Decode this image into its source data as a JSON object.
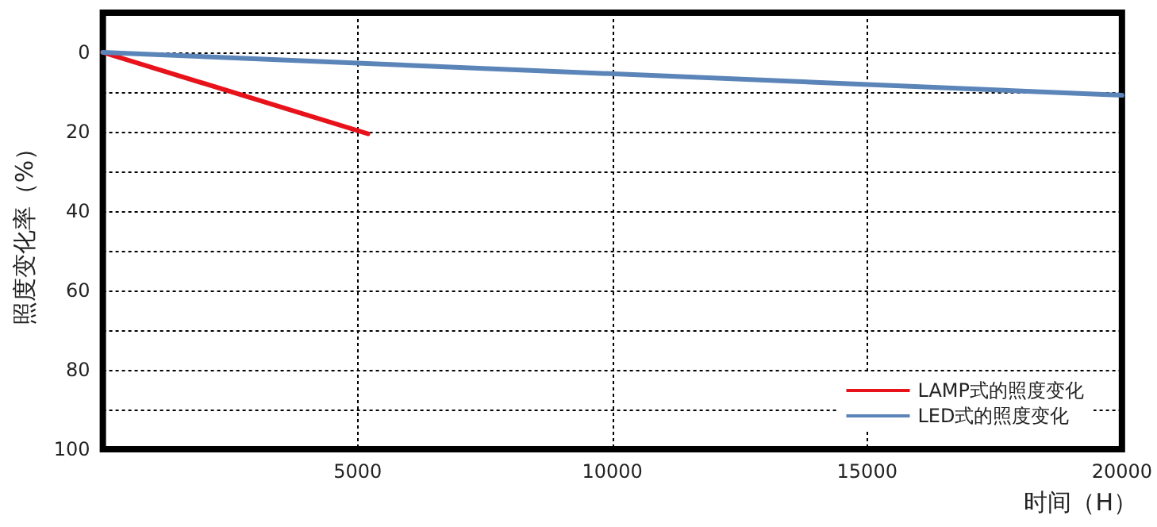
{
  "chart_data": {
    "type": "line",
    "xlabel": "时间（H）",
    "ylabel": "照度变化率（%）",
    "xlim": [
      0,
      20000
    ],
    "xticks": [
      5000,
      10000,
      15000,
      20000
    ],
    "ylim": [
      100,
      -10
    ],
    "yticks": [
      0,
      {
        "value": 10,
        "label": null
      },
      20,
      {
        "value": 30,
        "label": null
      },
      40,
      {
        "value": 50,
        "label": null
      },
      60,
      {
        "value": 70,
        "label": null
      },
      80,
      {
        "value": 90,
        "label": null
      },
      100
    ],
    "grid": true,
    "legend": "bottom right",
    "line_style": "solid",
    "marker": "none",
    "series": [
      {
        "name": "LAMP式的照度变化",
        "color": "#e8121b",
        "x": [
          0,
          5200
        ],
        "values": [
          0,
          20.5
        ]
      },
      {
        "name": "LED式的照度变化",
        "color": "#5b84b8",
        "x": [
          0,
          20000
        ],
        "values": [
          0,
          10.8
        ]
      }
    ]
  }
}
